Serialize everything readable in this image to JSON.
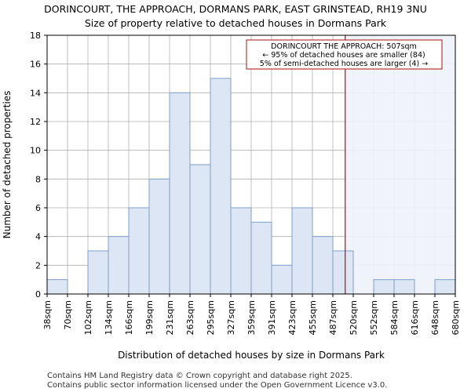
{
  "title_line1": "DORINCOURT, THE APPROACH, DORMANS PARK, EAST GRINSTEAD, RH19 3NU",
  "title_line2": "Size of property relative to detached houses in Dormans Park",
  "footer_line1": "Contains HM Land Registry data © Crown copyright and database right 2025.",
  "footer_line2": "Contains public sector information licensed under the Open Government Licence v3.0.",
  "colors": {
    "bar_fill": "#dce6f4",
    "bar_stroke": "#7f9fcc",
    "highlight_region": "#eef3fa",
    "marker_line": "#aa1111",
    "grid": "#b0b0b0"
  },
  "annotation": {
    "line1": "DORINCOURT THE APPROACH: 507sqm",
    "line2": "← 95% of detached houses are smaller (84)",
    "line3": "5% of semi-detached houses are larger (4) →"
  },
  "chart_data": {
    "type": "bar",
    "title": "Size of property relative to detached houses in Dormans Park",
    "xlabel": "Distribution of detached houses by size in Dormans Park",
    "ylabel": "Number of detached properties",
    "ylim": [
      0,
      18
    ],
    "yticks": [
      0,
      2,
      4,
      6,
      8,
      10,
      12,
      14,
      16,
      18
    ],
    "bin_edges": [
      38,
      70,
      102,
      134,
      166,
      199,
      231,
      263,
      295,
      327,
      359,
      391,
      423,
      455,
      487,
      520,
      552,
      584,
      616,
      648,
      680
    ],
    "tick_labels": [
      "38sqm",
      "70sqm",
      "102sqm",
      "134sqm",
      "166sqm",
      "199sqm",
      "231sqm",
      "263sqm",
      "295sqm",
      "327sqm",
      "359sqm",
      "391sqm",
      "423sqm",
      "455sqm",
      "487sqm",
      "520sqm",
      "552sqm",
      "584sqm",
      "616sqm",
      "648sqm",
      "680sqm"
    ],
    "values": [
      1,
      0,
      3,
      4,
      6,
      8,
      14,
      9,
      15,
      6,
      5,
      2,
      6,
      4,
      3,
      0,
      1,
      1,
      0,
      1
    ],
    "marker_value": 507,
    "grid": true
  }
}
